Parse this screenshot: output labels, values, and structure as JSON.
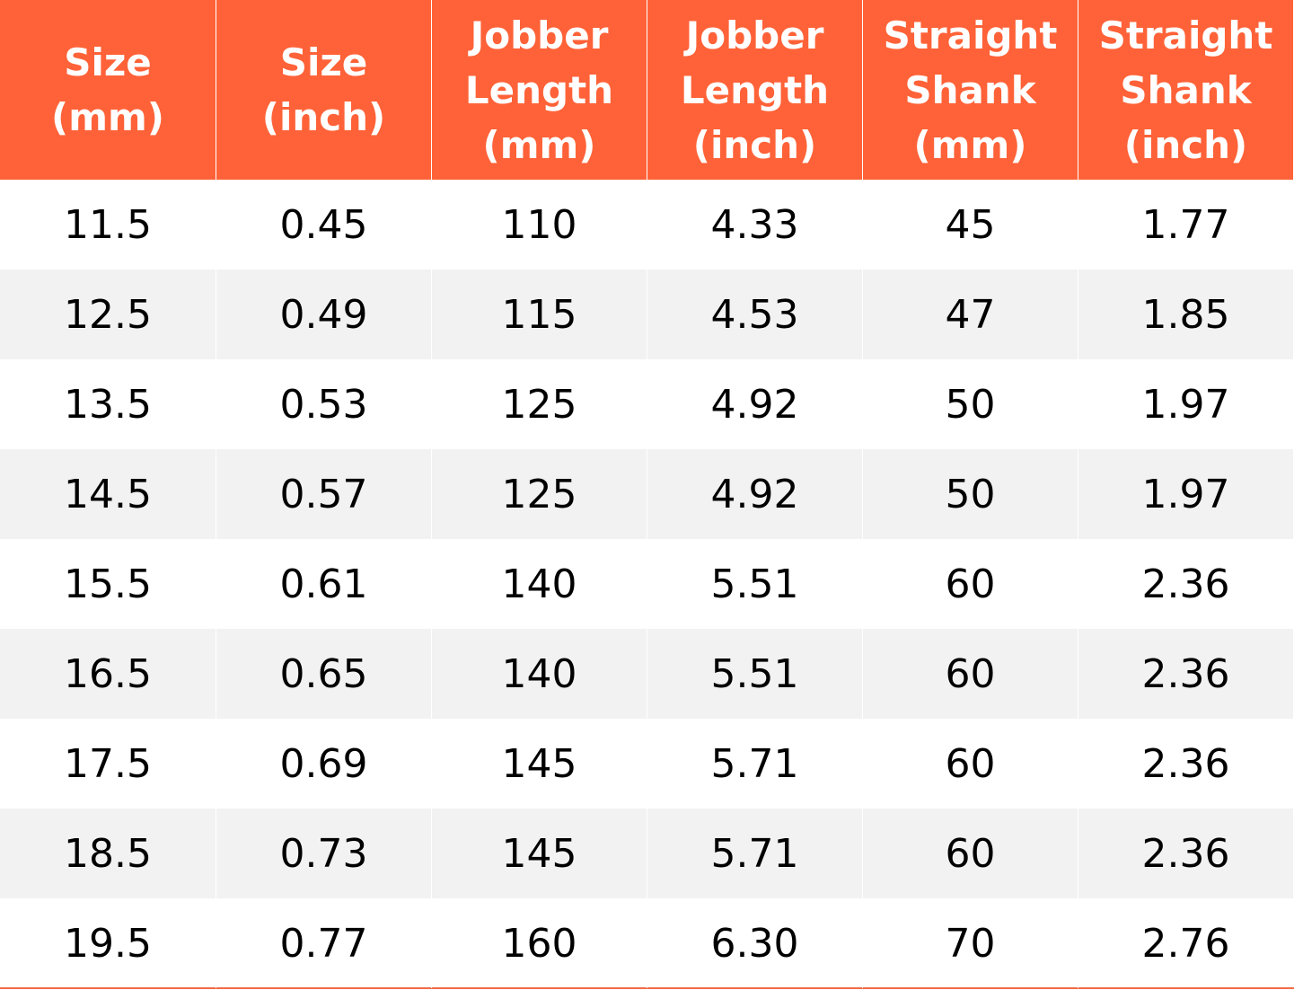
{
  "table": {
    "header": [
      [
        "Size",
        "(mm)"
      ],
      [
        "Size",
        "(inch)"
      ],
      [
        "Jobber",
        "Length",
        "(mm)"
      ],
      [
        "Jobber",
        "Length",
        "(inch)"
      ],
      [
        "Straight",
        "Shank",
        "(mm)"
      ],
      [
        "Straight",
        "Shank",
        "(inch)"
      ]
    ],
    "rows": [
      [
        "11.5",
        "0.45",
        "110",
        "4.33",
        "45",
        "1.77"
      ],
      [
        "12.5",
        "0.49",
        "115",
        "4.53",
        "47",
        "1.85"
      ],
      [
        "13.5",
        "0.53",
        "125",
        "4.92",
        "50",
        "1.97"
      ],
      [
        "14.5",
        "0.57",
        "125",
        "4.92",
        "50",
        "1.97"
      ],
      [
        "15.5",
        "0.61",
        "140",
        "5.51",
        "60",
        "2.36"
      ],
      [
        "16.5",
        "0.65",
        "140",
        "5.51",
        "60",
        "2.36"
      ],
      [
        "17.5",
        "0.69",
        "145",
        "5.71",
        "60",
        "2.36"
      ],
      [
        "18.5",
        "0.73",
        "145",
        "5.71",
        "60",
        "2.36"
      ],
      [
        "19.5",
        "0.77",
        "160",
        "6.30",
        "70",
        "2.76"
      ]
    ]
  }
}
